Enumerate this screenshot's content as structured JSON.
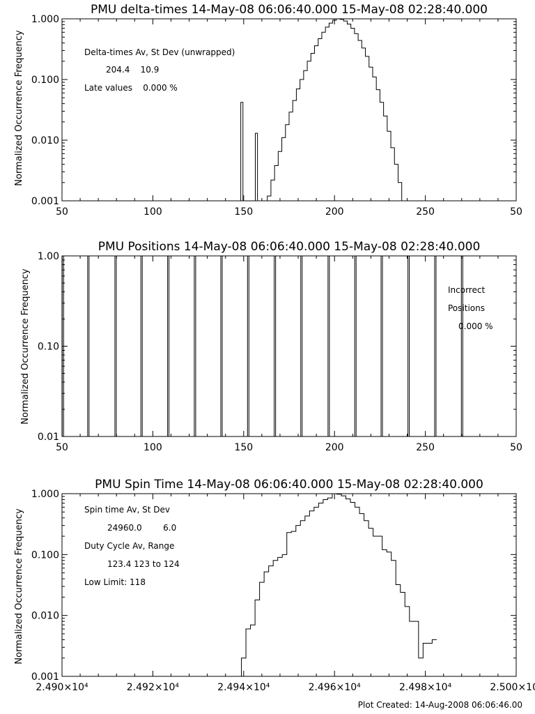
{
  "footer": "Plot Created: 14-Aug-2008 06:06:46.00",
  "chart_data": [
    {
      "type": "histogram",
      "title": "PMU delta-times 14-May-08 06:06:40.000 15-May-08 02:28:40.000",
      "ylabel": "Normalized Occurrence Frequency",
      "xlim": [
        50,
        300
      ],
      "ylim": [
        0.001,
        1.0
      ],
      "yscale": "log",
      "xticks": [
        "50",
        "100",
        "150",
        "200",
        "250",
        "50"
      ],
      "yticks": [
        "1.000",
        "0.100",
        "0.010",
        "0.001"
      ],
      "annotations": [
        "Delta-times Av, St Dev (unwrapped)",
        "204.4    10.9",
        "Late values    0.000 %"
      ],
      "spikes": [
        {
          "x": 149,
          "y": 0.042
        },
        {
          "x": 157,
          "y": 0.013
        }
      ],
      "x": [
        164,
        166,
        168,
        170,
        172,
        174,
        176,
        178,
        180,
        182,
        184,
        186,
        188,
        190,
        192,
        194,
        196,
        198,
        200,
        202,
        204,
        206,
        208,
        210,
        212,
        214,
        216,
        218,
        220,
        222,
        224,
        226,
        228,
        230,
        232,
        234,
        236,
        238
      ],
      "y": [
        0.0012,
        0.0022,
        0.0038,
        0.0065,
        0.011,
        0.018,
        0.029,
        0.045,
        0.07,
        0.1,
        0.14,
        0.2,
        0.27,
        0.36,
        0.47,
        0.6,
        0.73,
        0.85,
        0.95,
        1.0,
        0.98,
        0.92,
        0.82,
        0.7,
        0.57,
        0.44,
        0.33,
        0.24,
        0.16,
        0.11,
        0.068,
        0.042,
        0.025,
        0.014,
        0.0075,
        0.004,
        0.002,
        0.001
      ]
    },
    {
      "type": "histogram",
      "title": "PMU Positions 14-May-08 06:06:40.000 15-May-08 02:28:40.000",
      "ylabel": "Normalized Occurrence Frequency",
      "xlim": [
        50,
        300
      ],
      "ylim": [
        0.01,
        1.0
      ],
      "yscale": "log",
      "xticks": [
        "50",
        "100",
        "150",
        "200",
        "250",
        "50"
      ],
      "yticks": [
        "1.00",
        "0.10",
        "0.01"
      ],
      "annotations": [
        "Incorrect",
        "Positions",
        "0.000 %"
      ],
      "x": [
        50.5,
        64.5,
        79.5,
        93.8,
        108.5,
        123.2,
        137.8,
        152.5,
        167.2,
        181.8,
        196.8,
        211.5,
        226,
        240.8,
        255.5,
        270.2
      ],
      "y": [
        1,
        1,
        1,
        1,
        1,
        1,
        1,
        1,
        1,
        1,
        1,
        1,
        1,
        1,
        1,
        1
      ]
    },
    {
      "type": "histogram",
      "title": "PMU Spin Time 14-May-08 06:06:40.000 15-May-08 02:28:40.000",
      "ylabel": "Normalized Occurrence Frequency",
      "xlim": [
        24900,
        25000
      ],
      "ylim": [
        0.001,
        1.0
      ],
      "yscale": "log",
      "xticks": [
        "2.490×10⁴",
        "2.492×10⁴",
        "2.494×10⁴",
        "2.496×10⁴",
        "2.498×10⁴",
        "2.500×10⁴"
      ],
      "yticks": [
        "1.000",
        "0.100",
        "0.010",
        "0.001"
      ],
      "annotations": [
        "Spin time Av, St Dev",
        "24960.0        6.0",
        "Duty Cycle Av, Range",
        "123.4 123 to 124",
        "Low Limit: 118"
      ],
      "x": [
        24940,
        24941,
        24942,
        24943,
        24944,
        24945,
        24946,
        24947,
        24948,
        24949,
        24950,
        24951,
        24952,
        24953,
        24954,
        24955,
        24956,
        24957,
        24958,
        24959,
        24960,
        24961,
        24962,
        24963,
        24964,
        24965,
        24966,
        24967,
        24968,
        24969,
        24970,
        24971,
        24972,
        24973,
        24974,
        24975,
        24976,
        24977,
        24978,
        24979,
        24980,
        24981,
        24982
      ],
      "y": [
        0.002,
        0.006,
        0.007,
        0.018,
        0.035,
        0.052,
        0.065,
        0.08,
        0.09,
        0.1,
        0.23,
        0.24,
        0.3,
        0.36,
        0.43,
        0.52,
        0.6,
        0.7,
        0.8,
        0.85,
        1.0,
        0.98,
        0.92,
        0.82,
        0.72,
        0.6,
        0.47,
        0.36,
        0.27,
        0.2,
        0.2,
        0.12,
        0.11,
        0.08,
        0.032,
        0.024,
        0.014,
        0.008,
        0.008,
        0.002,
        0.0035,
        0.0035,
        0.004
      ]
    }
  ]
}
